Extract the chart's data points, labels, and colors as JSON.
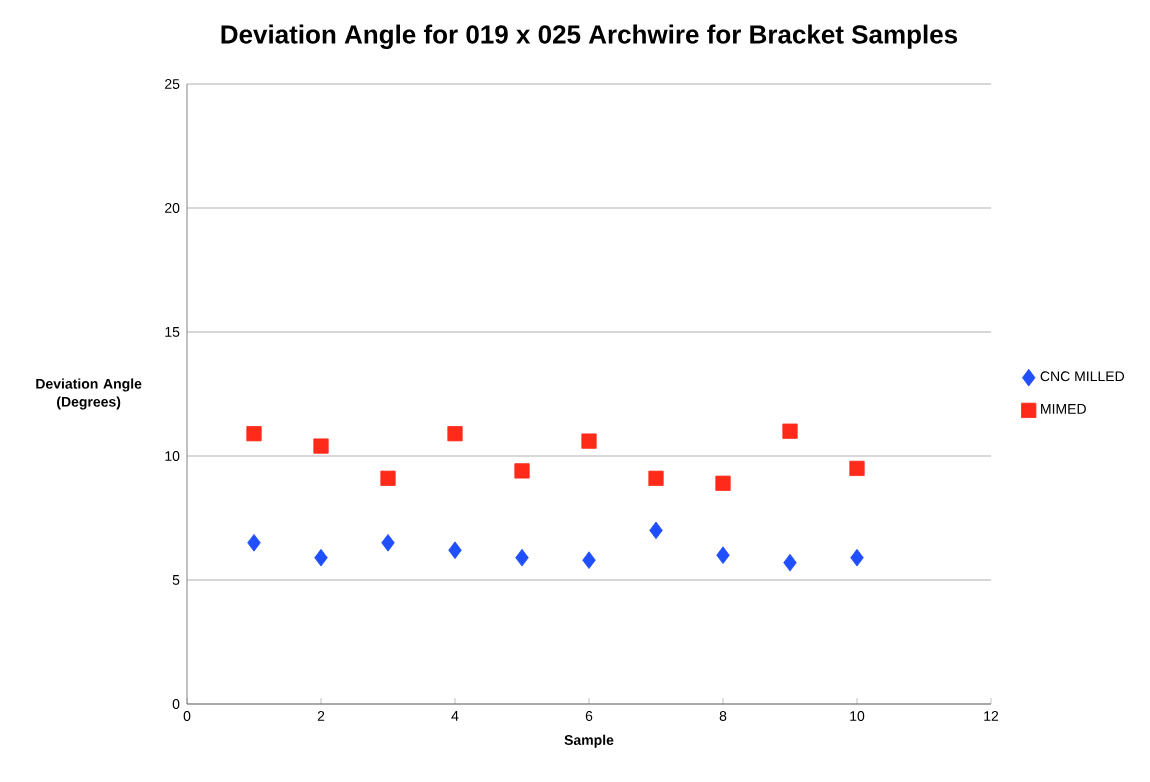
{
  "chart_data": {
    "type": "scatter",
    "title": "Deviation Angle for 019 x 025 Archwire for Bracket Samples",
    "xlabel": "Sample",
    "ylabel": "Deviation Angle (Degrees)",
    "x": [
      1,
      2,
      3,
      4,
      5,
      6,
      7,
      8,
      9,
      10
    ],
    "series": [
      {
        "name": "CNC MILLED",
        "color": "#1f4fff",
        "marker": "diamond",
        "values": [
          6.5,
          5.9,
          6.5,
          6.2,
          5.9,
          5.8,
          7.0,
          6.0,
          5.7,
          5.9
        ]
      },
      {
        "name": "MIMED",
        "color": "#ff2a1a",
        "marker": "square",
        "values": [
          10.9,
          10.4,
          9.1,
          10.9,
          9.4,
          10.6,
          9.1,
          8.9,
          11.0,
          9.5
        ]
      }
    ],
    "xlim": [
      0,
      12
    ],
    "xticks": [
      0,
      2,
      4,
      6,
      8,
      10,
      12
    ],
    "ylim": [
      0,
      25
    ],
    "yticks": [
      0,
      5,
      10,
      15,
      20,
      25
    ],
    "grid": "y",
    "legend": "right"
  }
}
